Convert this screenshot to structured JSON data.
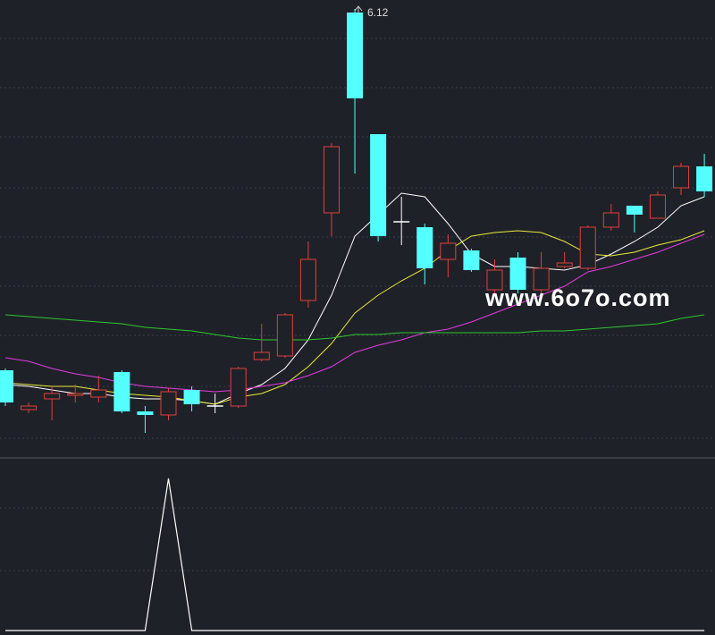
{
  "chart_data": [
    {
      "type": "candlestick",
      "open": [
        4.1,
        3.88,
        3.94,
        3.96,
        3.95,
        4.09,
        3.87,
        3.85,
        3.99,
        3.9,
        3.9,
        4.16,
        4.18,
        4.49,
        4.98,
        6.1,
        5.42,
        4.93,
        4.9,
        4.72,
        4.77,
        4.55,
        4.73,
        4.55,
        4.68,
        4.67,
        4.9,
        5.02,
        4.95,
        5.12,
        5.24
      ],
      "high": [
        4.11,
        3.92,
        4.01,
        4.02,
        4.07,
        4.1,
        3.9,
        4.0,
        4.01,
        3.97,
        4.12,
        4.36,
        4.42,
        4.82,
        5.37,
        6.12,
        5.42,
        5.07,
        4.92,
        4.86,
        4.78,
        4.72,
        4.76,
        4.76,
        4.76,
        4.91,
        5.03,
        5.02,
        5.1,
        5.26,
        5.31
      ],
      "low": [
        3.9,
        3.86,
        3.82,
        3.92,
        3.92,
        3.86,
        3.75,
        3.82,
        3.87,
        3.86,
        3.89,
        4.15,
        4.17,
        4.45,
        4.85,
        5.2,
        4.82,
        4.8,
        4.58,
        4.62,
        4.65,
        4.52,
        4.53,
        4.52,
        4.67,
        4.66,
        4.88,
        4.87,
        4.95,
        5.08,
        5.07
      ],
      "close": [
        3.92,
        3.9,
        3.97,
        3.97,
        3.99,
        3.87,
        3.85,
        3.98,
        3.91,
        3.9,
        4.11,
        4.2,
        4.41,
        4.72,
        5.35,
        5.62,
        4.85,
        4.93,
        4.67,
        4.81,
        4.66,
        4.66,
        4.55,
        4.67,
        4.7,
        4.9,
        4.98,
        4.97,
        5.08,
        5.24,
        5.1
      ],
      "up_color": "#e0403c",
      "down_color": "#54ffff",
      "doji_color": "#ffffff",
      "ylim": [
        3.72,
        6.17
      ],
      "overlays": [
        {
          "color": "#ffffff",
          "values": [
            4.02,
            4.01,
            3.99,
            3.97,
            3.97,
            3.95,
            3.94,
            3.94,
            3.93,
            3.91,
            3.97,
            4.02,
            4.11,
            4.27,
            4.52,
            4.85,
            4.97,
            5.09,
            5.07,
            4.92,
            4.75,
            4.68,
            4.68,
            4.67,
            4.66,
            4.69,
            4.75,
            4.82,
            4.9,
            5.02,
            5.07
          ]
        },
        {
          "color": "#e8e83a",
          "values": [
            4.03,
            4.02,
            4.01,
            4.01,
            3.99,
            3.97,
            3.96,
            3.95,
            3.93,
            3.91,
            3.95,
            3.97,
            4.02,
            4.12,
            4.25,
            4.42,
            4.52,
            4.6,
            4.67,
            4.77,
            4.85,
            4.87,
            4.88,
            4.87,
            4.82,
            4.75,
            4.74,
            4.76,
            4.8,
            4.83,
            4.88
          ]
        },
        {
          "color": "#e23ce2",
          "values": [
            4.17,
            4.15,
            4.11,
            4.08,
            4.06,
            4.03,
            4.01,
            4.0,
            3.99,
            3.98,
            3.99,
            4.01,
            4.03,
            4.07,
            4.12,
            4.2,
            4.24,
            4.27,
            4.31,
            4.33,
            4.37,
            4.42,
            4.47,
            4.52,
            4.57,
            4.65,
            4.68,
            4.72,
            4.76,
            4.81,
            4.86
          ]
        },
        {
          "color": "#2ec82e",
          "values": [
            4.41,
            4.4,
            4.39,
            4.38,
            4.37,
            4.36,
            4.34,
            4.33,
            4.32,
            4.3,
            4.28,
            4.27,
            4.27,
            4.27,
            4.28,
            4.3,
            4.3,
            4.31,
            4.31,
            4.31,
            4.31,
            4.31,
            4.31,
            4.32,
            4.32,
            4.33,
            4.34,
            4.35,
            4.36,
            4.39,
            4.41
          ]
        }
      ],
      "watermark": "www.6o7o.com"
    },
    {
      "type": "line",
      "color": "#ffffff",
      "values": [
        0,
        0,
        0,
        0,
        0,
        0,
        0,
        1,
        0,
        0,
        0,
        0,
        0,
        0,
        0,
        0,
        0,
        0,
        0,
        0,
        0,
        0,
        0,
        0,
        0,
        0,
        0,
        0,
        0,
        0,
        0
      ],
      "ylim": [
        0,
        1.1
      ]
    }
  ]
}
